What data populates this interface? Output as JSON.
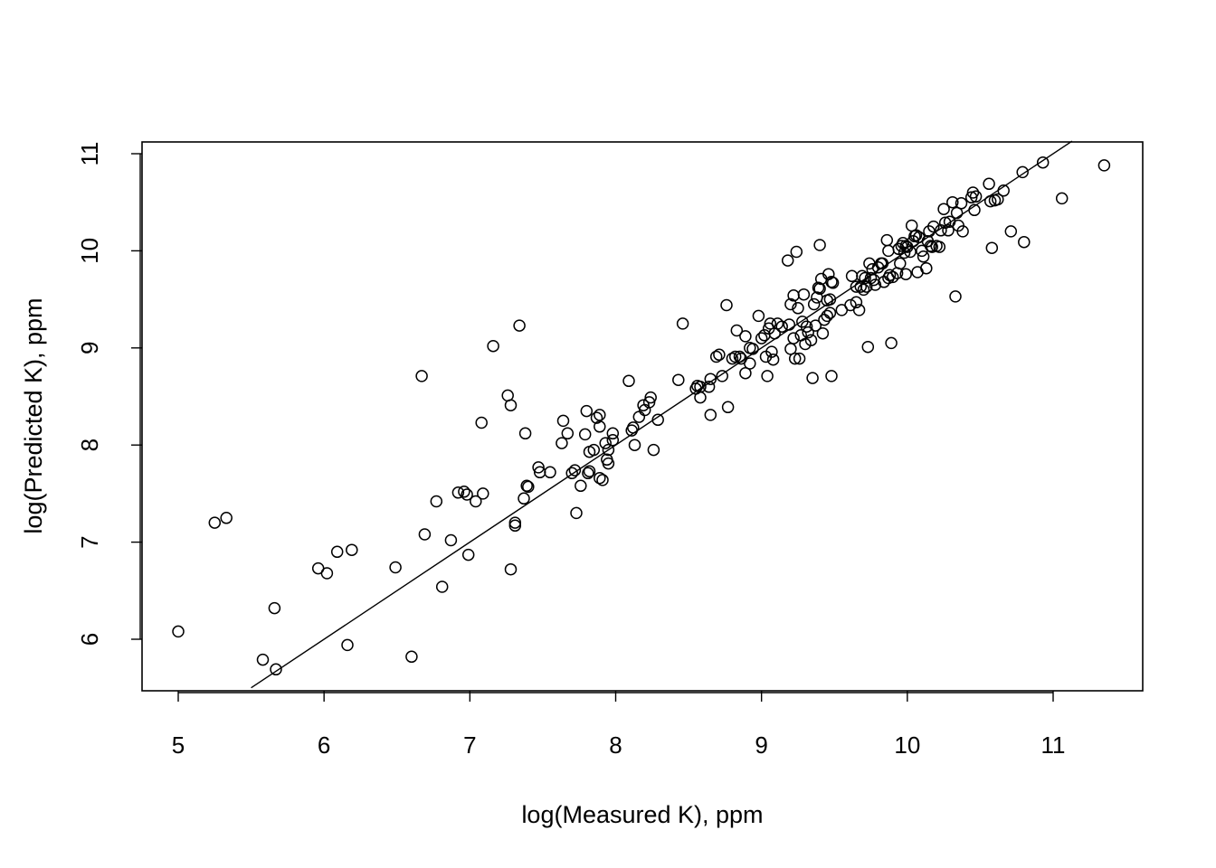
{
  "chart_data": {
    "type": "scatter",
    "title": "",
    "xlabel": "log(Measured K), ppm",
    "ylabel": "log(Predicted K), ppm",
    "xlim": [
      4.75,
      11.6
    ],
    "ylim": [
      5.5,
      11.13
    ],
    "x_ticks": [
      5,
      6,
      7,
      8,
      9,
      10,
      11
    ],
    "y_ticks": [
      6,
      7,
      8,
      9,
      10,
      11
    ],
    "reference_line": {
      "slope": 1,
      "intercept": 0
    },
    "grid": false,
    "marker": "open-circle",
    "points": [
      [
        5.0,
        6.08
      ],
      [
        5.25,
        7.2
      ],
      [
        5.33,
        7.25
      ],
      [
        5.58,
        5.79
      ],
      [
        5.66,
        6.32
      ],
      [
        5.67,
        5.69
      ],
      [
        5.96,
        6.73
      ],
      [
        6.02,
        6.68
      ],
      [
        6.09,
        6.9
      ],
      [
        6.16,
        5.94
      ],
      [
        6.19,
        6.92
      ],
      [
        6.49,
        6.74
      ],
      [
        6.6,
        5.82
      ],
      [
        6.67,
        8.71
      ],
      [
        6.69,
        7.08
      ],
      [
        6.77,
        7.42
      ],
      [
        6.81,
        6.54
      ],
      [
        6.87,
        7.02
      ],
      [
        6.92,
        7.51
      ],
      [
        6.96,
        7.52
      ],
      [
        6.98,
        7.49
      ],
      [
        6.99,
        6.87
      ],
      [
        7.04,
        7.42
      ],
      [
        7.08,
        8.23
      ],
      [
        7.09,
        7.5
      ],
      [
        7.16,
        9.02
      ],
      [
        7.26,
        8.51
      ],
      [
        7.28,
        8.41
      ],
      [
        7.28,
        6.72
      ],
      [
        7.31,
        7.2
      ],
      [
        7.31,
        7.17
      ],
      [
        7.34,
        9.23
      ],
      [
        7.37,
        7.45
      ],
      [
        7.38,
        8.12
      ],
      [
        7.39,
        7.58
      ],
      [
        7.4,
        7.57
      ],
      [
        7.47,
        7.77
      ],
      [
        7.48,
        7.72
      ],
      [
        7.55,
        7.72
      ],
      [
        7.63,
        8.02
      ],
      [
        7.64,
        8.25
      ],
      [
        7.67,
        8.12
      ],
      [
        7.7,
        7.71
      ],
      [
        7.72,
        7.74
      ],
      [
        7.73,
        7.3
      ],
      [
        7.76,
        7.58
      ],
      [
        7.79,
        8.11
      ],
      [
        7.8,
        8.35
      ],
      [
        7.81,
        7.71
      ],
      [
        7.82,
        7.73
      ],
      [
        7.82,
        7.93
      ],
      [
        7.85,
        7.95
      ],
      [
        7.87,
        8.28
      ],
      [
        7.89,
        8.31
      ],
      [
        7.89,
        8.19
      ],
      [
        7.89,
        7.66
      ],
      [
        7.91,
        7.64
      ],
      [
        7.93,
        8.02
      ],
      [
        7.94,
        7.85
      ],
      [
        7.95,
        7.95
      ],
      [
        7.95,
        7.81
      ],
      [
        7.98,
        8.12
      ],
      [
        7.98,
        8.05
      ],
      [
        8.09,
        8.66
      ],
      [
        8.11,
        8.15
      ],
      [
        8.12,
        8.18
      ],
      [
        8.13,
        8.0
      ],
      [
        8.16,
        8.29
      ],
      [
        8.19,
        8.41
      ],
      [
        8.2,
        8.36
      ],
      [
        8.23,
        8.44
      ],
      [
        8.24,
        8.49
      ],
      [
        8.26,
        7.95
      ],
      [
        8.29,
        8.26
      ],
      [
        8.43,
        8.67
      ],
      [
        8.46,
        9.25
      ],
      [
        8.55,
        8.58
      ],
      [
        8.56,
        8.61
      ],
      [
        8.58,
        8.6
      ],
      [
        8.58,
        8.49
      ],
      [
        8.64,
        8.6
      ],
      [
        8.65,
        8.68
      ],
      [
        8.65,
        8.31
      ],
      [
        8.69,
        8.91
      ],
      [
        8.71,
        8.93
      ],
      [
        8.73,
        8.71
      ],
      [
        8.76,
        9.44
      ],
      [
        8.77,
        8.39
      ],
      [
        8.8,
        8.89
      ],
      [
        8.82,
        8.91
      ],
      [
        8.83,
        9.18
      ],
      [
        8.85,
        8.91
      ],
      [
        8.86,
        8.89
      ],
      [
        8.89,
        9.12
      ],
      [
        8.89,
        8.74
      ],
      [
        8.92,
        9.0
      ],
      [
        8.92,
        8.84
      ],
      [
        8.94,
        8.99
      ],
      [
        8.98,
        9.33
      ],
      [
        9.0,
        9.1
      ],
      [
        9.02,
        9.13
      ],
      [
        9.03,
        8.91
      ],
      [
        9.04,
        8.71
      ],
      [
        9.05,
        9.2
      ],
      [
        9.06,
        9.25
      ],
      [
        9.07,
        8.96
      ],
      [
        9.08,
        8.88
      ],
      [
        9.09,
        9.15
      ],
      [
        9.11,
        9.25
      ],
      [
        9.14,
        9.22
      ],
      [
        9.18,
        9.9
      ],
      [
        9.19,
        9.24
      ],
      [
        9.2,
        9.45
      ],
      [
        9.2,
        8.99
      ],
      [
        9.22,
        9.54
      ],
      [
        9.22,
        9.1
      ],
      [
        9.23,
        8.89
      ],
      [
        9.24,
        9.99
      ],
      [
        9.25,
        9.41
      ],
      [
        9.26,
        8.89
      ],
      [
        9.27,
        9.13
      ],
      [
        9.28,
        9.27
      ],
      [
        9.29,
        9.55
      ],
      [
        9.3,
        9.04
      ],
      [
        9.31,
        9.22
      ],
      [
        9.32,
        9.16
      ],
      [
        9.34,
        9.08
      ],
      [
        9.35,
        8.69
      ],
      [
        9.36,
        9.45
      ],
      [
        9.37,
        9.23
      ],
      [
        9.38,
        9.52
      ],
      [
        9.39,
        9.62
      ],
      [
        9.4,
        9.61
      ],
      [
        9.4,
        10.06
      ],
      [
        9.41,
        9.71
      ],
      [
        9.42,
        9.15
      ],
      [
        9.43,
        9.29
      ],
      [
        9.45,
        9.33
      ],
      [
        9.45,
        9.49
      ],
      [
        9.46,
        9.76
      ],
      [
        9.47,
        9.36
      ],
      [
        9.47,
        9.5
      ],
      [
        9.48,
        9.68
      ],
      [
        9.48,
        8.71
      ],
      [
        9.49,
        9.67
      ],
      [
        9.55,
        9.39
      ],
      [
        9.61,
        9.44
      ],
      [
        9.62,
        9.74
      ],
      [
        9.65,
        9.47
      ],
      [
        9.65,
        9.63
      ],
      [
        9.67,
        9.39
      ],
      [
        9.68,
        9.63
      ],
      [
        9.69,
        9.74
      ],
      [
        9.7,
        9.6
      ],
      [
        9.71,
        9.72
      ],
      [
        9.72,
        9.63
      ],
      [
        9.73,
        9.01
      ],
      [
        9.74,
        9.87
      ],
      [
        9.75,
        9.72
      ],
      [
        9.76,
        9.81
      ],
      [
        9.77,
        9.7
      ],
      [
        9.78,
        9.65
      ],
      [
        9.8,
        9.83
      ],
      [
        9.82,
        9.87
      ],
      [
        9.83,
        9.87
      ],
      [
        9.84,
        9.68
      ],
      [
        9.86,
        10.11
      ],
      [
        9.87,
        10.0
      ],
      [
        9.87,
        9.72
      ],
      [
        9.88,
        9.75
      ],
      [
        9.89,
        9.05
      ],
      [
        9.9,
        9.73
      ],
      [
        9.93,
        9.77
      ],
      [
        9.94,
        10.02
      ],
      [
        9.95,
        9.87
      ],
      [
        9.96,
        10.05
      ],
      [
        9.97,
        10.08
      ],
      [
        9.98,
        9.98
      ],
      [
        9.99,
        10.05
      ],
      [
        9.99,
        9.76
      ],
      [
        10.0,
        10.04
      ],
      [
        10.02,
        9.99
      ],
      [
        10.03,
        10.26
      ],
      [
        10.04,
        10.1
      ],
      [
        10.05,
        10.15
      ],
      [
        10.06,
        10.16
      ],
      [
        10.07,
        9.78
      ],
      [
        10.08,
        10.14
      ],
      [
        10.1,
        10.0
      ],
      [
        10.11,
        9.94
      ],
      [
        10.13,
        9.82
      ],
      [
        10.14,
        10.1
      ],
      [
        10.15,
        10.2
      ],
      [
        10.16,
        10.05
      ],
      [
        10.17,
        10.04
      ],
      [
        10.18,
        10.25
      ],
      [
        10.2,
        10.05
      ],
      [
        10.22,
        10.04
      ],
      [
        10.23,
        10.21
      ],
      [
        10.25,
        10.43
      ],
      [
        10.26,
        10.29
      ],
      [
        10.28,
        10.21
      ],
      [
        10.29,
        10.3
      ],
      [
        10.31,
        10.5
      ],
      [
        10.33,
        9.53
      ],
      [
        10.34,
        10.39
      ],
      [
        10.35,
        10.26
      ],
      [
        10.37,
        10.49
      ],
      [
        10.38,
        10.2
      ],
      [
        10.44,
        10.55
      ],
      [
        10.45,
        10.6
      ],
      [
        10.46,
        10.42
      ],
      [
        10.47,
        10.56
      ],
      [
        10.56,
        10.69
      ],
      [
        10.57,
        10.51
      ],
      [
        10.58,
        10.03
      ],
      [
        10.6,
        10.52
      ],
      [
        10.62,
        10.53
      ],
      [
        10.66,
        10.62
      ],
      [
        10.71,
        10.2
      ],
      [
        10.79,
        10.81
      ],
      [
        10.8,
        10.09
      ],
      [
        10.93,
        10.91
      ],
      [
        11.06,
        10.54
      ],
      [
        11.35,
        10.88
      ]
    ]
  }
}
